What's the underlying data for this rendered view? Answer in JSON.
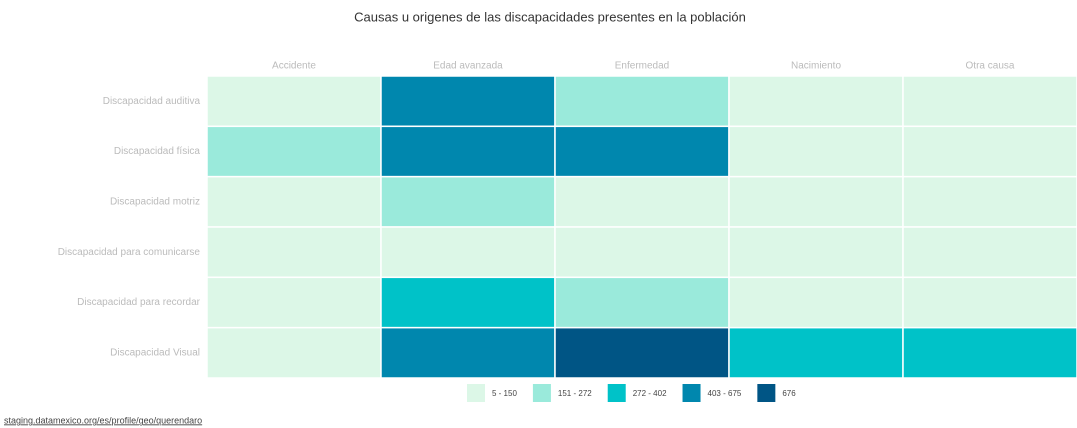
{
  "chart_data": {
    "type": "heatmap",
    "title": "Causas u origenes de las discapacidades presentes en la población",
    "x_categories": [
      "Accidente",
      "Edad avanzada",
      "Enfermedad",
      "Nacimiento",
      "Otra causa"
    ],
    "y_categories": [
      "Discapacidad auditiva",
      "Discapacidad física",
      "Discapacidad motriz",
      "Discapacidad para comunicarse",
      "Discapacidad para recordar",
      "Discapacidad Visual"
    ],
    "values": [
      [
        80,
        550,
        200,
        60,
        40
      ],
      [
        180,
        600,
        450,
        70,
        50
      ],
      [
        100,
        190,
        120,
        40,
        30
      ],
      [
        20,
        60,
        40,
        30,
        10
      ],
      [
        30,
        350,
        220,
        20,
        15
      ],
      [
        130,
        500,
        676,
        300,
        280
      ]
    ],
    "color_bins": [
      {
        "min": 5,
        "max": 150,
        "label": "5 - 150",
        "color": "#dcf7e7"
      },
      {
        "min": 151,
        "max": 272,
        "label": "151 - 272",
        "color": "#9aeadb"
      },
      {
        "min": 272,
        "max": 402,
        "label": "272 - 402",
        "color": "#00c2c8"
      },
      {
        "min": 403,
        "max": 675,
        "label": "403 - 675",
        "color": "#0087ae"
      },
      {
        "min": 676,
        "max": 676,
        "label": "676",
        "color": "#005585"
      }
    ]
  },
  "source": "staging.datamexico.org/es/profile/geo/querendaro"
}
